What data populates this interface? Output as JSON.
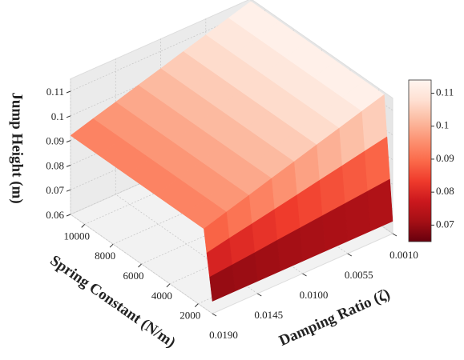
{
  "chart_data": {
    "type": "surface3d",
    "xlabel": "Spring Constant (N/m)",
    "ylabel": "Damping Ratio (ζ)",
    "zlabel": "Jump Height (m)",
    "x": [
      1000,
      1200,
      1400,
      1600,
      3000,
      5000,
      7000,
      9000,
      11000
    ],
    "y": [
      0.001,
      0.00325,
      0.0055,
      0.00775,
      0.01,
      0.01225,
      0.0145,
      0.01675,
      0.019
    ],
    "z": [
      [
        0.065,
        0.065,
        0.065,
        0.065,
        0.065,
        0.065,
        0.065,
        0.065,
        0.065
      ],
      [
        0.0813,
        0.0804,
        0.0795,
        0.0786,
        0.0777,
        0.0768,
        0.0758,
        0.0749,
        0.074
      ],
      [
        0.0977,
        0.0959,
        0.094,
        0.0922,
        0.0903,
        0.0885,
        0.0867,
        0.0849,
        0.083
      ],
      [
        0.114,
        0.1113,
        0.1085,
        0.1058,
        0.103,
        0.1003,
        0.0975,
        0.0948,
        0.092
      ],
      [
        0.114,
        0.1113,
        0.1085,
        0.1058,
        0.103,
        0.1003,
        0.0975,
        0.0948,
        0.092
      ],
      [
        0.114,
        0.1113,
        0.1085,
        0.1058,
        0.103,
        0.1003,
        0.0975,
        0.0948,
        0.092
      ],
      [
        0.114,
        0.1113,
        0.1085,
        0.1058,
        0.103,
        0.1003,
        0.0975,
        0.0948,
        0.092
      ],
      [
        0.114,
        0.1113,
        0.1085,
        0.1058,
        0.103,
        0.1003,
        0.0975,
        0.0948,
        0.092
      ],
      [
        0.114,
        0.1113,
        0.1085,
        0.1058,
        0.103,
        0.1003,
        0.0975,
        0.0948,
        0.092
      ]
    ],
    "xlim": [
      1000,
      11000
    ],
    "xticks": [
      2000,
      4000,
      6000,
      8000,
      10000
    ],
    "ylim": [
      0.001,
      0.019
    ],
    "yticks": [
      {
        "value": 0.001,
        "label": "0.0010"
      },
      {
        "value": 0.0055,
        "label": "0.0055"
      },
      {
        "value": 0.01,
        "label": "0.0100"
      },
      {
        "value": 0.0145,
        "label": "0.0145"
      },
      {
        "value": 0.019,
        "label": "0.0190"
      }
    ],
    "zlim": [
      0.06,
      0.115
    ],
    "zticks": [
      0.06,
      0.07,
      0.08,
      0.09,
      0.1,
      {
        "value": 0.11,
        "label": "0.11"
      }
    ],
    "clim": [
      0.065,
      0.114
    ],
    "cticks": [
      0.07,
      0.08,
      0.09,
      0.1,
      0.11
    ],
    "colormap": [
      "#67000d",
      "#a50f15",
      "#cb181d",
      "#ef3b2c",
      "#fb6a4a",
      "#fc9272",
      "#fcbba1",
      "#fee0d2",
      "#fff5f0"
    ],
    "grid": true
  }
}
